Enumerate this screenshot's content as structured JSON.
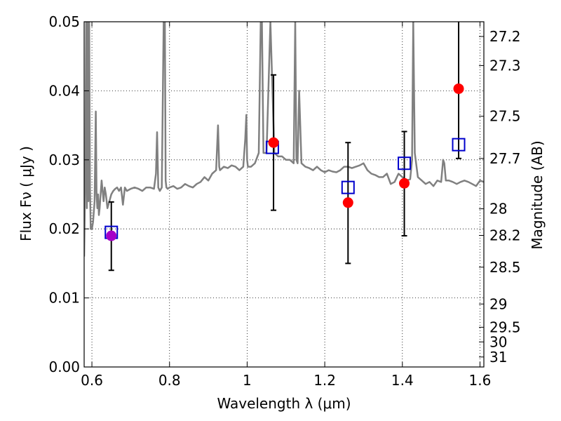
{
  "chart_data": {
    "type": "line",
    "xlabel": "Wavelength  λ (μm)",
    "ylabel": "Flux  Fν  ( μJy )",
    "y2label": "Magnitude (AB)",
    "xlim": [
      0.58,
      1.61
    ],
    "ylim": [
      0.0,
      0.05
    ],
    "grid": true,
    "x_ticks": [
      0.6,
      0.8,
      1.0,
      1.2,
      1.4,
      1.6
    ],
    "x_tick_labels": [
      "0.6",
      "0.8",
      "1",
      "1.2",
      "1.4",
      "1.6"
    ],
    "y_ticks": [
      0.0,
      0.01,
      0.02,
      0.03,
      0.04,
      0.05
    ],
    "y_tick_labels": [
      "0.00",
      "0.01",
      "0.02",
      "0.03",
      "0.04",
      "0.05"
    ],
    "y2_ticks": [
      27.2,
      27.3,
      27.5,
      27.7,
      28,
      28.2,
      28.5,
      29,
      29.5,
      30,
      31
    ],
    "y2_tick_labels": [
      "27.2",
      "27.3",
      "27.5",
      "27.7",
      "28",
      "28.2",
      "28.5",
      "29",
      "29.5",
      "30",
      "31"
    ],
    "series": [
      {
        "kind": "spectrum",
        "color": "#808080",
        "x": [
          0.58,
          0.583,
          0.585,
          0.587,
          0.589,
          0.591,
          0.593,
          0.595,
          0.597,
          0.6,
          0.603,
          0.607,
          0.61,
          0.612,
          0.614,
          0.616,
          0.618,
          0.62,
          0.625,
          0.63,
          0.633,
          0.636,
          0.64,
          0.645,
          0.65,
          0.655,
          0.66,
          0.665,
          0.67,
          0.675,
          0.68,
          0.685,
          0.69,
          0.7,
          0.71,
          0.72,
          0.73,
          0.74,
          0.75,
          0.76,
          0.765,
          0.768,
          0.771,
          0.775,
          0.78,
          0.785,
          0.788,
          0.79,
          0.792,
          0.795,
          0.8,
          0.81,
          0.82,
          0.83,
          0.84,
          0.85,
          0.86,
          0.87,
          0.88,
          0.89,
          0.9,
          0.91,
          0.92,
          0.925,
          0.928,
          0.93,
          0.94,
          0.95,
          0.96,
          0.97,
          0.98,
          0.99,
          0.995,
          0.998,
          1.0,
          1.002,
          1.01,
          1.02,
          1.03,
          1.035,
          1.038,
          1.042,
          1.05,
          1.06,
          1.07,
          1.08,
          1.09,
          1.1,
          1.11,
          1.12,
          1.124,
          1.127,
          1.13,
          1.134,
          1.14,
          1.15,
          1.16,
          1.17,
          1.18,
          1.19,
          1.2,
          1.21,
          1.22,
          1.23,
          1.24,
          1.25,
          1.26,
          1.27,
          1.28,
          1.29,
          1.3,
          1.31,
          1.32,
          1.33,
          1.34,
          1.35,
          1.36,
          1.37,
          1.38,
          1.39,
          1.4,
          1.41,
          1.42,
          1.425,
          1.428,
          1.432,
          1.44,
          1.45,
          1.46,
          1.47,
          1.48,
          1.49,
          1.5,
          1.505,
          1.508,
          1.512,
          1.52,
          1.53,
          1.54,
          1.55,
          1.56,
          1.57,
          1.58,
          1.59,
          1.6,
          1.61
        ],
        "y": [
          0.016,
          0.028,
          0.05,
          0.023,
          0.05,
          0.024,
          0.05,
          0.026,
          0.02,
          0.02,
          0.021,
          0.024,
          0.037,
          0.025,
          0.023,
          0.025,
          0.022,
          0.023,
          0.027,
          0.024,
          0.026,
          0.025,
          0.023,
          0.024,
          0.025,
          0.0255,
          0.0258,
          0.026,
          0.0255,
          0.026,
          0.0235,
          0.026,
          0.0255,
          0.0258,
          0.026,
          0.0258,
          0.0255,
          0.026,
          0.026,
          0.0258,
          0.028,
          0.034,
          0.026,
          0.0255,
          0.026,
          0.05,
          0.05,
          0.027,
          0.026,
          0.0258,
          0.026,
          0.0262,
          0.0258,
          0.026,
          0.0265,
          0.0262,
          0.026,
          0.0265,
          0.0268,
          0.0275,
          0.027,
          0.028,
          0.0285,
          0.035,
          0.029,
          0.0285,
          0.029,
          0.0288,
          0.0292,
          0.029,
          0.0285,
          0.029,
          0.033,
          0.0365,
          0.03,
          0.029,
          0.029,
          0.0295,
          0.031,
          0.05,
          0.05,
          0.031,
          0.031,
          0.05,
          0.031,
          0.0305,
          0.0305,
          0.03,
          0.03,
          0.0295,
          0.05,
          0.03,
          0.0295,
          0.04,
          0.0295,
          0.029,
          0.0288,
          0.0285,
          0.029,
          0.0285,
          0.0282,
          0.0285,
          0.0283,
          0.0282,
          0.0285,
          0.029,
          0.029,
          0.0288,
          0.029,
          0.0292,
          0.0295,
          0.0285,
          0.028,
          0.0278,
          0.0275,
          0.0275,
          0.028,
          0.0265,
          0.0268,
          0.028,
          0.0275,
          0.027,
          0.0272,
          0.03,
          0.05,
          0.031,
          0.0275,
          0.027,
          0.0265,
          0.0268,
          0.0262,
          0.027,
          0.0268,
          0.03,
          0.0295,
          0.027,
          0.027,
          0.0268,
          0.0265,
          0.0268,
          0.027,
          0.0268,
          0.0265,
          0.0262,
          0.027,
          0.0268
        ]
      },
      {
        "kind": "model-points",
        "marker": "open-square",
        "color": "#0000cc",
        "x": [
          0.65,
          1.065,
          1.26,
          1.405,
          1.545
        ],
        "y": [
          0.0195,
          0.0318,
          0.026,
          0.0295,
          0.0322
        ]
      },
      {
        "kind": "observed-points",
        "marker": "filled-circle",
        "color": "#ff0000",
        "x": [
          0.65,
          1.068,
          1.26,
          1.405,
          1.545
        ],
        "y": [
          0.019,
          0.0325,
          0.0238,
          0.0266,
          0.0403
        ],
        "yerr_low": [
          0.014,
          0.0227,
          0.015,
          0.019,
          0.0302
        ],
        "yerr_high": [
          0.0239,
          0.0423,
          0.0325,
          0.0341,
          0.05
        ],
        "first_point_color": "#a600c8"
      }
    ]
  }
}
